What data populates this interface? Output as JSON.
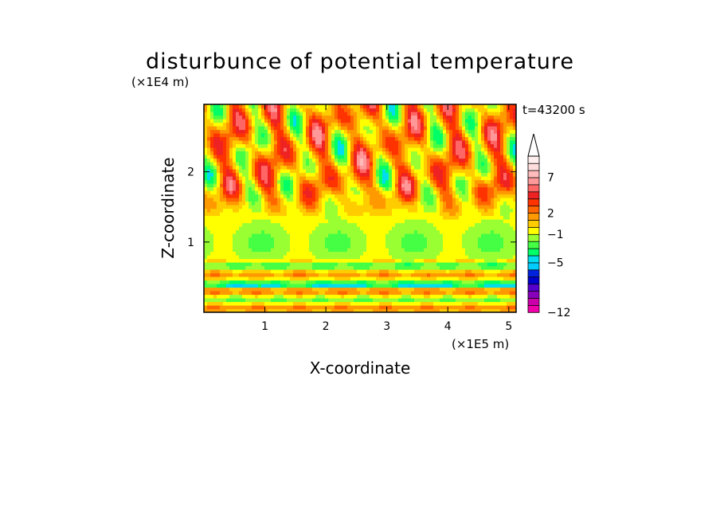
{
  "chart_data": {
    "type": "heatmap",
    "title": "disturbunce of potential temperature",
    "xlabel": "X-coordinate",
    "ylabel": "Z-coordinate",
    "x_unit": "(×1E5 m)",
    "y_unit": "(×1E4 m)",
    "time_label": "t=43200 s",
    "xlim": [
      0,
      5.12
    ],
    "ylim": [
      0,
      2.96
    ],
    "x_ticks": [
      1,
      2,
      3,
      4,
      5
    ],
    "y_ticks": [
      1,
      2
    ],
    "colorbar": {
      "levels": [
        -12,
        -11,
        -10,
        -9,
        -8,
        -7,
        -6,
        -5,
        -4,
        -3,
        -2,
        -1,
        0,
        1,
        2,
        3,
        4,
        5,
        6,
        7,
        8,
        9,
        10
      ],
      "tick_labels": [
        -12,
        -5,
        -1,
        2,
        7
      ],
      "colors": [
        "#ee00aa",
        "#cc00aa",
        "#8800bb",
        "#5500cc",
        "#0000cc",
        "#0022dd",
        "#00ccff",
        "#00ddee",
        "#00ff66",
        "#44ff44",
        "#99ff33",
        "#ffff00",
        "#ffcc00",
        "#ff9900",
        "#ff6600",
        "#ff3300",
        "#ee2222",
        "#ff6666",
        "#ff9999",
        "#ffbbbb",
        "#ffdddd",
        "#ffeeee"
      ],
      "extend": "max"
    },
    "grid": false,
    "legend": "colorbar-right"
  }
}
